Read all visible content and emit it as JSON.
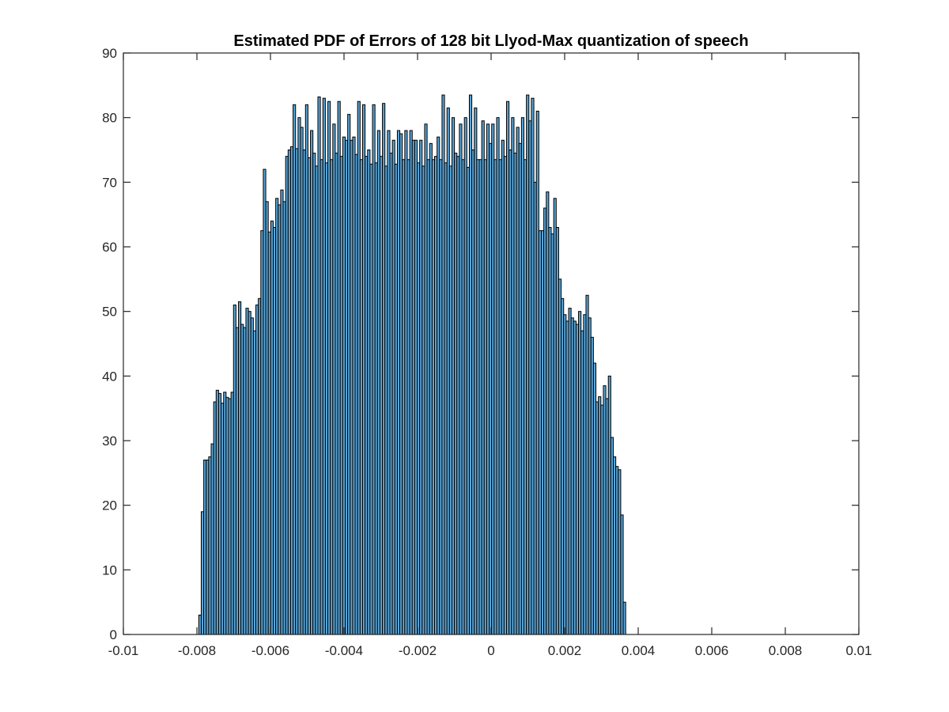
{
  "chart_data": {
    "type": "bar",
    "title": "Estimated PDF of Errors of 128 bit Llyod-Max quantization of speech",
    "xlabel": "",
    "ylabel": "",
    "xlim": [
      -0.01,
      0.01
    ],
    "ylim": [
      0,
      90
    ],
    "x_ticks": [
      -0.01,
      -0.008,
      -0.006,
      -0.004,
      -0.002,
      0,
      0.002,
      0.004,
      0.006,
      0.008,
      0.01
    ],
    "x_tick_labels": [
      "-0.01",
      "-0.008",
      "-0.006",
      "-0.004",
      "-0.002",
      "0",
      "0.002",
      "0.004",
      "0.006",
      "0.008",
      "0.01"
    ],
    "y_ticks": [
      0,
      10,
      20,
      30,
      40,
      50,
      60,
      70,
      80,
      90
    ],
    "y_tick_labels": [
      "0",
      "10",
      "20",
      "30",
      "40",
      "50",
      "60",
      "70",
      "80",
      "90"
    ],
    "grid": false,
    "bar_color": "#5ba5d6",
    "bin_start": -0.00795,
    "bin_width": 6.75e-05,
    "values": [
      3,
      19,
      27,
      27,
      27.5,
      29.5,
      36,
      37.8,
      37.3,
      35.8,
      37.5,
      36.7,
      36.5,
      37.5,
      51,
      47.5,
      51.5,
      48,
      47.5,
      50.5,
      50,
      49,
      47,
      51,
      52,
      62.5,
      72,
      67,
      62.3,
      64,
      63,
      67.5,
      66.5,
      68.8,
      67,
      74,
      75,
      75.5,
      82,
      75.2,
      80,
      78.5,
      75,
      82,
      73.8,
      78,
      74.5,
      72.5,
      83.2,
      73.5,
      83,
      73,
      82.5,
      73.5,
      79,
      74.5,
      82.5,
      74,
      77,
      76.5,
      80.5,
      76.5,
      77,
      74.3,
      82.5,
      73.5,
      82,
      74,
      75,
      72.8,
      82,
      73,
      78,
      74,
      82.2,
      72.5,
      78,
      74.5,
      76.5,
      72.8,
      78,
      77.5,
      73.5,
      78,
      73.5,
      78,
      76.5,
      76.5,
      73,
      76.5,
      72.5,
      79,
      73.5,
      76,
      73.5,
      74,
      77,
      73.5,
      83.5,
      73,
      81.5,
      72.5,
      80,
      74.5,
      74,
      79,
      73.5,
      80,
      72.3,
      83.5,
      75,
      81.5,
      73.5,
      73.5,
      79.5,
      73.5,
      79,
      76,
      79,
      73.5,
      80,
      73.5,
      76.5,
      74,
      82.5,
      75,
      80,
      74.5,
      78.5,
      76,
      80,
      73.5,
      83.5,
      79.5,
      83,
      70,
      81,
      62.5,
      62.5,
      66,
      68.5,
      63,
      62,
      67.5,
      63,
      55,
      52,
      49.5,
      48.5,
      50.5,
      49,
      48.5,
      48,
      50,
      47,
      49.5,
      52.5,
      49,
      46,
      42,
      36,
      36.8,
      35.5,
      38.5,
      36.5,
      40,
      30.5,
      27.5,
      26,
      25.5,
      18.5,
      5
    ]
  }
}
